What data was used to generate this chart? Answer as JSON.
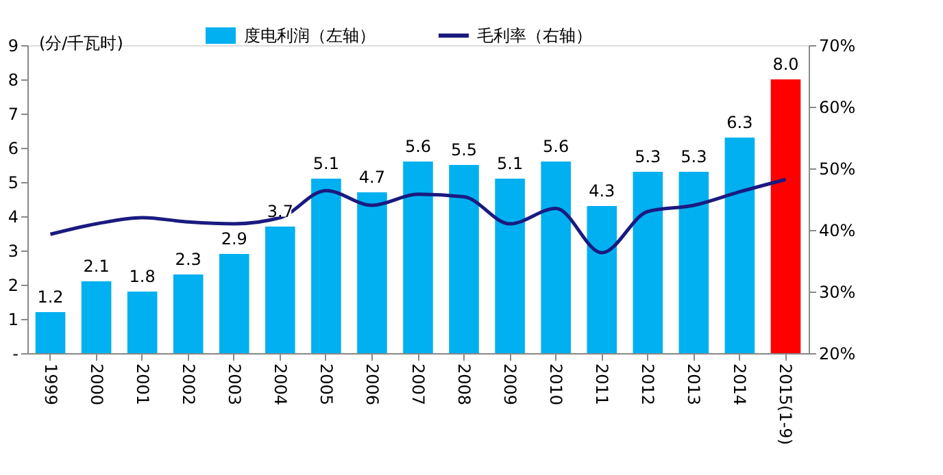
{
  "chart_data": {
    "type": "bar",
    "ylabel": "(分/千瓦时)",
    "categories": [
      "1999",
      "2000",
      "2001",
      "2002",
      "2003",
      "2004",
      "2005",
      "2006",
      "2007",
      "2008",
      "2009",
      "2010",
      "2011",
      "2012",
      "2013",
      "2014",
      "2015(1-9)"
    ],
    "series": [
      {
        "name": "度电利润（左轴）",
        "axis": "y",
        "color": "#00b0f0",
        "colors": [
          "#00b0f0",
          "#00b0f0",
          "#00b0f0",
          "#00b0f0",
          "#00b0f0",
          "#00b0f0",
          "#00b0f0",
          "#00b0f0",
          "#00b0f0",
          "#00b0f0",
          "#00b0f0",
          "#00b0f0",
          "#00b0f0",
          "#00b0f0",
          "#00b0f0",
          "#00b0f0",
          "#ff0000"
        ],
        "values": [
          1.2,
          2.1,
          1.8,
          2.3,
          2.9,
          3.7,
          5.1,
          4.7,
          5.6,
          5.5,
          5.1,
          5.6,
          4.3,
          5.3,
          5.3,
          6.3,
          8.0
        ],
        "value_labels": [
          "1.2",
          "2.1",
          "1.8",
          "2.3",
          "2.9",
          "3.7",
          "5.1",
          "4.7",
          "5.6",
          "5.5",
          "5.1",
          "5.6",
          "4.3",
          "5.3",
          "5.3",
          "6.3",
          "8.0"
        ]
      },
      {
        "name": "毛利率（右轴）",
        "type": "line",
        "axis": "y2",
        "color": "#1a1a80",
        "values": [
          39.3,
          41.0,
          42.0,
          41.3,
          41.0,
          42.0,
          46.4,
          44.0,
          45.8,
          45.4,
          41.0,
          43.5,
          36.3,
          43.0,
          44.0,
          46.2,
          48.2
        ]
      }
    ],
    "ylim": [
      0,
      9
    ],
    "yticks": [
      {
        "value": 0,
        "label": "-"
      },
      1,
      2,
      3,
      4,
      5,
      6,
      7,
      8,
      9
    ],
    "y2lim": [
      20,
      70
    ],
    "y2ticks": [
      {
        "value": 20,
        "label": "20%"
      },
      {
        "value": 30,
        "label": "30%"
      },
      {
        "value": 40,
        "label": "40%"
      },
      {
        "value": 50,
        "label": "50%"
      },
      {
        "value": 60,
        "label": "60%"
      },
      {
        "value": 70,
        "label": "70%"
      }
    ],
    "legend": "top",
    "grid": false,
    "line_style": "solid",
    "marker": "none"
  }
}
